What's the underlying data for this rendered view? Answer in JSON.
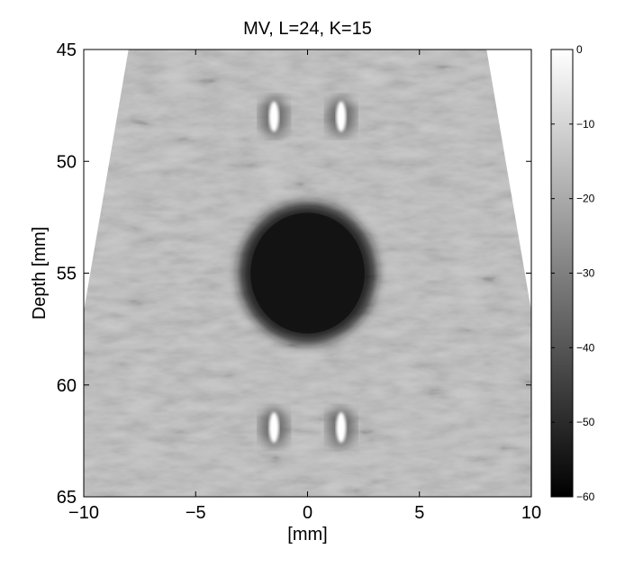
{
  "chart_data": {
    "type": "heatmap",
    "title": "MV, L=24, K=15",
    "xlabel": "[mm]",
    "ylabel": "Depth [mm]",
    "xlim": [
      -10,
      10
    ],
    "ylim": [
      45,
      65
    ],
    "y_reversed": true,
    "xticks": [
      -10,
      -5,
      0,
      5,
      10
    ],
    "yticks": [
      45,
      50,
      55,
      60,
      65
    ],
    "x_tick_labels": [
      "−10",
      "−5",
      "0",
      "5",
      "10"
    ],
    "y_tick_labels": [
      "45",
      "50",
      "55",
      "60",
      "65"
    ],
    "colorbar": {
      "range": [
        -60,
        0
      ],
      "ticks": [
        0,
        -10,
        -20,
        -30,
        -40,
        -50,
        -60
      ],
      "tick_labels": [
        "0",
        "−10",
        "−20",
        "−30",
        "−40",
        "−50",
        "−60"
      ],
      "colormap": "gray"
    },
    "grid": false,
    "sector": {
      "top_x": [
        -8,
        8
      ],
      "bottom_depth_at_edge": 56.7
    },
    "features": [
      {
        "kind": "point-target",
        "x": -1.5,
        "depth": 48.0,
        "level_db": 0
      },
      {
        "kind": "point-target",
        "x": 1.5,
        "depth": 48.0,
        "level_db": 0
      },
      {
        "kind": "point-target",
        "x": -1.5,
        "depth": 61.9,
        "level_db": 0
      },
      {
        "kind": "point-target",
        "x": 1.5,
        "depth": 61.9,
        "level_db": 0
      },
      {
        "kind": "anechoic-cyst",
        "x": 0,
        "depth": 55.0,
        "radius": 3.0,
        "level_db": -50
      }
    ]
  },
  "colors": {
    "background": "#ffffff",
    "axis": "#000000",
    "tissue_mid": "#6e6e6e"
  }
}
